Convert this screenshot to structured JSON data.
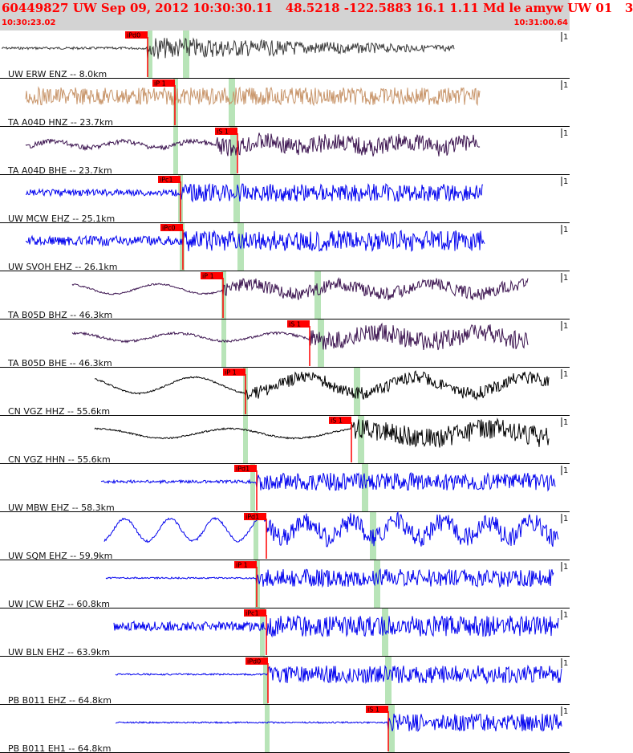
{
  "header": {
    "title": "60449827 UW Sep 09, 2012 10:30:30.11   48.5218 -122.5883 16.1 1.11 Md le amyw UW 01   3",
    "time_start": "10:30:23.02",
    "time_end": "10:31:00.64"
  },
  "colors": {
    "header_bg": "#d3d3d3",
    "header_text": "#ff0000",
    "pick_flag": "#ff0000",
    "window_band": "#b8e4b8"
  },
  "traces": [
    {
      "label": "UW ERW ENZ -- 8.0km",
      "color": "#3a3a3a",
      "pick": "iPd0",
      "pick_color": "red",
      "scale": "1"
    },
    {
      "label": "TA A04D HNZ -- 23.7km",
      "color": "#c8956a",
      "pick": "iP 1",
      "pick_color": "red",
      "scale": "1"
    },
    {
      "label": "TA A04D BHE -- 23.7km",
      "color": "#3c1450",
      "pick": "iS 1",
      "pick_color": "red",
      "scale": "1"
    },
    {
      "label": "UW MCW EHZ -- 25.1km",
      "color": "#0000ee",
      "pick": "iPc1",
      "pick_color": "red",
      "scale": "1"
    },
    {
      "label": "UW SVOH EHZ -- 26.1km",
      "color": "#0000ee",
      "pick": "iPc0",
      "pick_color": "red",
      "scale": "1"
    },
    {
      "label": "TA B05D BHZ -- 46.3km",
      "color": "#3c1450",
      "pick": "iP 1",
      "pick_color": "red",
      "scale": "1"
    },
    {
      "label": "TA B05D BHE -- 46.3km",
      "color": "#3c1450",
      "pick": "iS 1",
      "pick_color": "red",
      "scale": "1"
    },
    {
      "label": "CN VGZ HHZ -- 55.6km",
      "color": "#000000",
      "pick": "iP 1",
      "pick_color": "red",
      "scale": "1"
    },
    {
      "label": "CN VGZ HHN -- 55.6km",
      "color": "#000000",
      "pick": "iS 1",
      "pick_color": "red",
      "scale": "1"
    },
    {
      "label": "UW MBW EHZ -- 58.3km",
      "color": "#0000ee",
      "pick": "iPd1",
      "pick_color": "red",
      "scale": "1"
    },
    {
      "label": "UW SQM EHZ -- 59.9km",
      "color": "#0000ee",
      "pick": "iPd1",
      "pick_color": "red",
      "scale": "1"
    },
    {
      "label": "UW JCW EHZ -- 60.8km",
      "color": "#0000ee",
      "pick": "iP 1",
      "pick_color": "red",
      "scale": "1"
    },
    {
      "label": "UW BLN EHZ -- 63.9km",
      "color": "#0000ee",
      "pick": "iPc1",
      "pick_color": "red",
      "scale": "1"
    },
    {
      "label": "PB B011 EHZ -- 64.8km",
      "color": "#0000ee",
      "pick": "iPd0",
      "pick_color": "red",
      "scale": "1"
    },
    {
      "label": "PB B011 EH1 -- 64.8km",
      "color": "#0000ee",
      "pick": "iS 1",
      "pick_color": "red",
      "scale": "1"
    }
  ]
}
